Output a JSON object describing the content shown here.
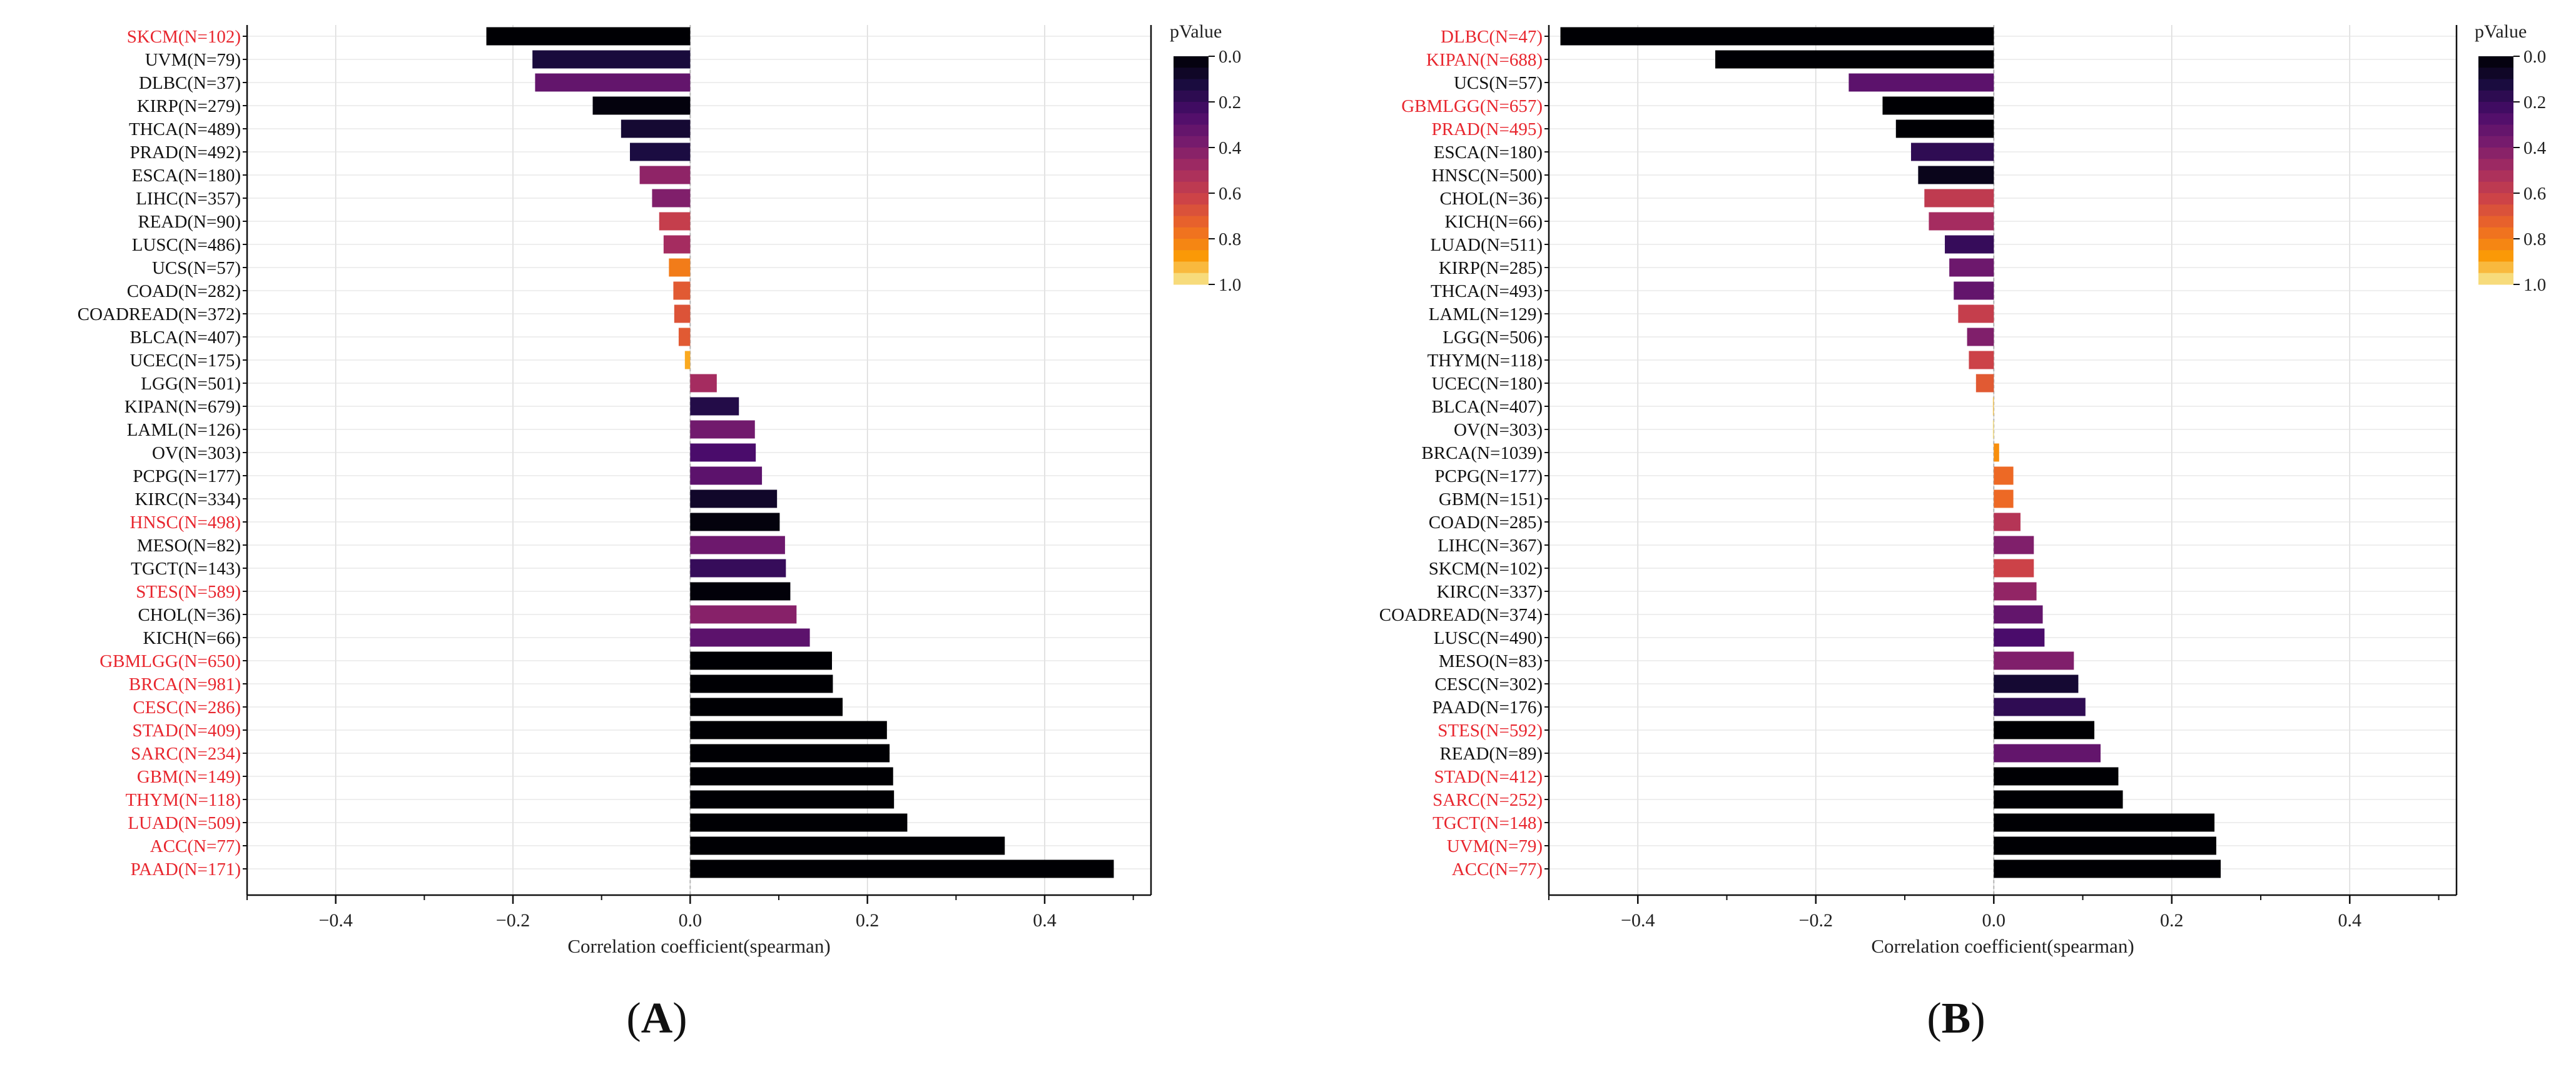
{
  "figure": {
    "panel_labels": [
      "A",
      "B"
    ]
  },
  "chart_data": [
    {
      "type": "bar",
      "orientation": "horizontal",
      "panel": "A",
      "xlabel": "Correlation coefficient(spearman)",
      "ylabel": "",
      "xlim": [
        -0.5,
        0.52
      ],
      "xticks": [
        -0.4,
        -0.2,
        0.0,
        0.2,
        0.4
      ],
      "xtick_labels": [
        "−0.4",
        "−0.2",
        "0.0",
        "0.2",
        "0.4"
      ],
      "grid": true,
      "colorbar": {
        "title": "pValue",
        "range": [
          0.0,
          1.0
        ],
        "ticks": [
          "0.0",
          "0.2",
          "0.4",
          "0.6",
          "0.8",
          "1.0"
        ]
      },
      "significant_color": "#e8262e",
      "normal_color": "#111111",
      "categories": [
        "SKCM(N=102)",
        "UVM(N=79)",
        "DLBC(N=37)",
        "KIRP(N=279)",
        "THCA(N=489)",
        "PRAD(N=492)",
        "ESCA(N=180)",
        "LIHC(N=357)",
        "READ(N=90)",
        "LUSC(N=486)",
        "UCS(N=57)",
        "COAD(N=282)",
        "COADREAD(N=372)",
        "BLCA(N=407)",
        "UCEC(N=175)",
        "LGG(N=501)",
        "KIPAN(N=679)",
        "LAML(N=126)",
        "OV(N=303)",
        "PCPG(N=177)",
        "KIRC(N=334)",
        "HNSC(N=498)",
        "MESO(N=82)",
        "TGCT(N=143)",
        "STES(N=589)",
        "CHOL(N=36)",
        "KICH(N=66)",
        "GBMLGG(N=650)",
        "BRCA(N=981)",
        "CESC(N=286)",
        "STAD(N=409)",
        "SARC(N=234)",
        "GBM(N=149)",
        "THYM(N=118)",
        "LUAD(N=509)",
        "ACC(N=77)",
        "PAAD(N=171)"
      ],
      "values": [
        -0.23,
        -0.178,
        -0.175,
        -0.11,
        -0.078,
        -0.068,
        -0.057,
        -0.043,
        -0.035,
        -0.03,
        -0.024,
        -0.019,
        -0.018,
        -0.013,
        -0.006,
        0.03,
        0.055,
        0.073,
        0.074,
        0.081,
        0.098,
        0.101,
        0.107,
        0.108,
        0.113,
        0.12,
        0.135,
        0.16,
        0.161,
        0.172,
        0.222,
        0.225,
        0.229,
        0.23,
        0.245,
        0.355,
        0.478
      ],
      "pvalues": [
        0.0,
        0.12,
        0.32,
        0.02,
        0.1,
        0.13,
        0.44,
        0.4,
        0.6,
        0.5,
        0.8,
        0.7,
        0.68,
        0.7,
        0.9,
        0.5,
        0.15,
        0.36,
        0.25,
        0.3,
        0.08,
        0.02,
        0.35,
        0.2,
        0.01,
        0.42,
        0.3,
        0.0,
        0.0,
        0.0,
        0.0,
        0.0,
        0.0,
        0.0,
        0.0,
        0.0,
        0.0
      ],
      "significant": [
        true,
        false,
        false,
        false,
        false,
        false,
        false,
        false,
        false,
        false,
        false,
        false,
        false,
        false,
        false,
        false,
        false,
        false,
        false,
        false,
        false,
        true,
        false,
        false,
        true,
        false,
        false,
        true,
        true,
        true,
        true,
        true,
        true,
        true,
        true,
        true,
        true
      ]
    },
    {
      "type": "bar",
      "orientation": "horizontal",
      "panel": "B",
      "xlabel": "Correlation coefficient(spearman)",
      "ylabel": "",
      "xlim": [
        -0.5,
        0.52
      ],
      "xticks": [
        -0.4,
        -0.2,
        0.0,
        0.2,
        0.4
      ],
      "xtick_labels": [
        "−0.4",
        "−0.2",
        "0.0",
        "0.2",
        "0.4"
      ],
      "grid": true,
      "colorbar": {
        "title": "pValue",
        "range": [
          0.0,
          1.0
        ],
        "ticks": [
          "0.0",
          "0.2",
          "0.4",
          "0.6",
          "0.8",
          "1.0"
        ]
      },
      "significant_color": "#e8262e",
      "normal_color": "#111111",
      "categories": [
        "DLBC(N=47)",
        "KIPAN(N=688)",
        "UCS(N=57)",
        "GBMLGG(N=657)",
        "PRAD(N=495)",
        "ESCA(N=180)",
        "HNSC(N=500)",
        "CHOL(N=36)",
        "KICH(N=66)",
        "LUAD(N=511)",
        "KIRP(N=285)",
        "THCA(N=493)",
        "LAML(N=129)",
        "LGG(N=506)",
        "THYM(N=118)",
        "UCEC(N=180)",
        "BLCA(N=407)",
        "OV(N=303)",
        "BRCA(N=1039)",
        "PCPG(N=177)",
        "GBM(N=151)",
        "COAD(N=285)",
        "LIHC(N=367)",
        "SKCM(N=102)",
        "KIRC(N=337)",
        "COADREAD(N=374)",
        "LUSC(N=490)",
        "MESO(N=83)",
        "CESC(N=302)",
        "PAAD(N=176)",
        "STES(N=592)",
        "READ(N=89)",
        "STAD(N=412)",
        "SARC(N=252)",
        "TGCT(N=148)",
        "UVM(N=79)",
        "ACC(N=77)"
      ],
      "values": [
        -0.487,
        -0.313,
        -0.163,
        -0.125,
        -0.11,
        -0.093,
        -0.085,
        -0.078,
        -0.073,
        -0.055,
        -0.05,
        -0.045,
        -0.04,
        -0.03,
        -0.028,
        -0.02,
        -0.001,
        -0.001,
        0.006,
        0.022,
        0.022,
        0.03,
        0.045,
        0.045,
        0.048,
        0.055,
        0.057,
        0.09,
        0.095,
        0.103,
        0.113,
        0.12,
        0.14,
        0.145,
        0.248,
        0.25,
        0.255
      ],
      "pvalues": [
        0.0,
        0.0,
        0.3,
        0.0,
        0.0,
        0.18,
        0.05,
        0.58,
        0.5,
        0.2,
        0.35,
        0.32,
        0.6,
        0.4,
        0.62,
        0.7,
        0.95,
        0.98,
        0.85,
        0.75,
        0.75,
        0.55,
        0.4,
        0.62,
        0.45,
        0.32,
        0.25,
        0.4,
        0.1,
        0.18,
        0.0,
        0.32,
        0.0,
        0.0,
        0.0,
        0.0,
        0.0
      ],
      "significant": [
        true,
        true,
        false,
        true,
        true,
        false,
        false,
        false,
        false,
        false,
        false,
        false,
        false,
        false,
        false,
        false,
        false,
        false,
        false,
        false,
        false,
        false,
        false,
        false,
        false,
        false,
        false,
        false,
        false,
        false,
        true,
        false,
        true,
        true,
        true,
        true,
        true
      ]
    }
  ]
}
